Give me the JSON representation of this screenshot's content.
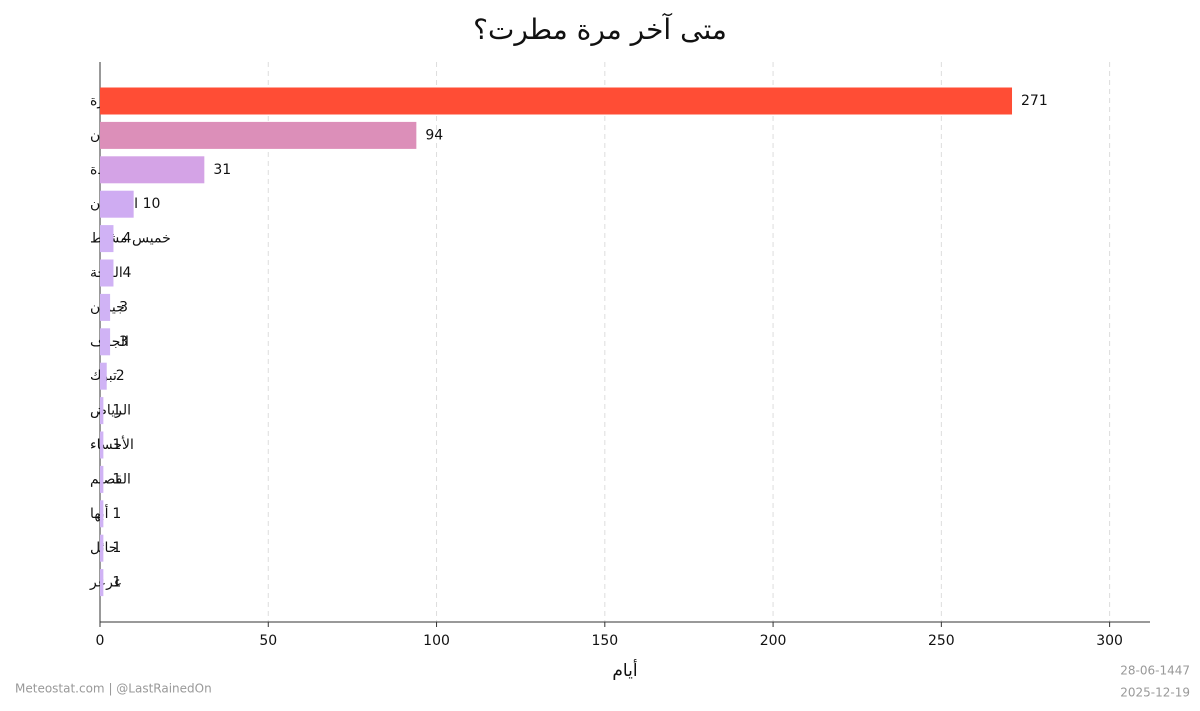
{
  "chart_data": {
    "type": "barh",
    "title": "متى آخر مرة مطرت؟",
    "xlabel": "أيام",
    "categories": [
      "المدينة المنورة",
      "نجران",
      "جدة",
      "الظهران",
      "خميس مشيط",
      "الباحة",
      "جيزان",
      "الجوف",
      "تبوك",
      "الرياض",
      "الأحساء",
      "القصيم",
      "أبها",
      "حائل",
      "عرعر"
    ],
    "values": [
      271,
      94,
      31,
      10,
      4,
      4,
      3,
      3,
      2,
      1,
      1,
      1,
      1,
      1,
      1
    ],
    "colors": [
      "#ff4d35",
      "#dc8fb9",
      "#d4a3e6",
      "#cfacf2",
      "#d0b2f5",
      "#d0b2f5",
      "#d0b3f5",
      "#d0b3f5",
      "#d0b3f5",
      "#d0b3f5",
      "#d0b3f5",
      "#d0b3f5",
      "#d0b3f5",
      "#d0b3f5",
      "#d0b3f5"
    ],
    "xlim": [
      0,
      312
    ],
    "xticks": [
      0,
      50,
      100,
      150,
      200,
      250,
      300
    ],
    "grid": true,
    "source": "Meteostat.com | @LastRainedOn",
    "date_hijri": "28-06-1447",
    "date": "2025-12-19"
  }
}
